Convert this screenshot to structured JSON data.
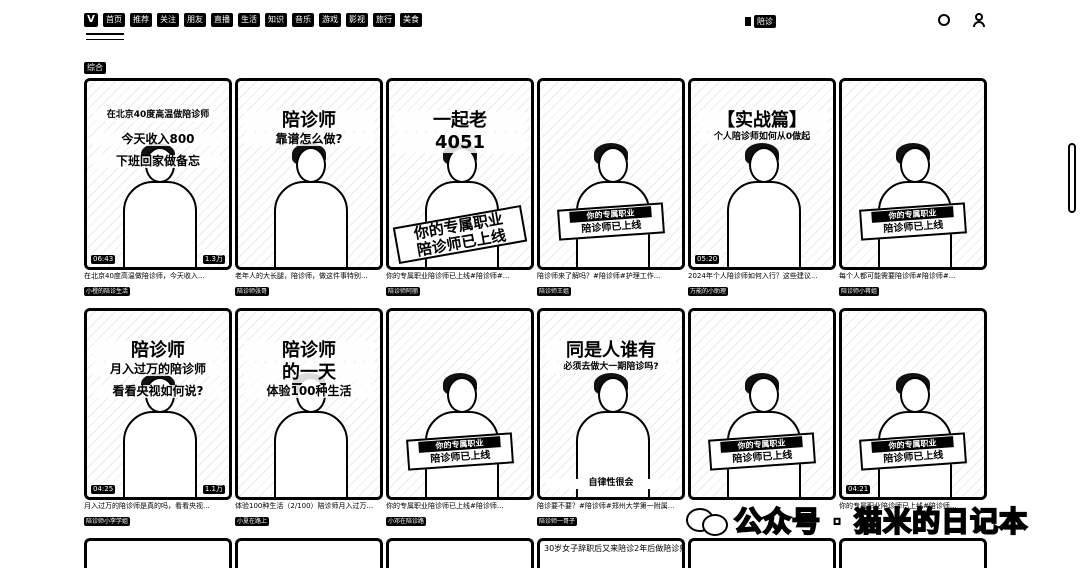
{
  "nav": {
    "logo": "V",
    "tabs": [
      "首页",
      "推荐",
      "关注",
      "朋友",
      "直播",
      "生活",
      "知识",
      "音乐",
      "游戏",
      "影视",
      "旅行",
      "美食"
    ]
  },
  "search": {
    "label": "陪诊"
  },
  "filter": {
    "label": "综合"
  },
  "row1": [
    {
      "overlay": [
        "在北京40度高温做陪诊师",
        "今天收入800",
        "下班回家做备忘"
      ],
      "duration": "06:43",
      "count": "1.3万",
      "title": "在北京40度高温做陪诊师，今天收入...",
      "author": "小橙的陪诊生活"
    },
    {
      "overlay": [
        "陪诊师",
        "靠谱怎么做?"
      ],
      "duration": "",
      "count": "",
      "title": "老年人的大长腿，陪诊师，做这件事特别...",
      "author": "陪诊师张哥"
    },
    {
      "overlay": [
        "一起老",
        "4051"
      ],
      "slanted": [
        "你的专属职业",
        "陪诊师已上线"
      ],
      "duration": "",
      "count": "",
      "title": "你的专属职业陪诊师已上线#陪诊师#...",
      "author": "陪诊师阿丽"
    },
    {
      "overlay": [],
      "banner": [
        "你的专属职业",
        "陪诊师已上线"
      ],
      "duration": "",
      "count": "",
      "title": "陪诊师来了解吗？#陪诊师#护理工作...",
      "author": "陪诊师王姐"
    },
    {
      "overlay": [
        "【实战篇】",
        "个人陪诊师如何从0做起"
      ],
      "duration": "05:20",
      "count": "",
      "title": "2024年个人陪诊师如何入行？这些建议...",
      "author": "万能的小助理"
    },
    {
      "overlay": [],
      "banner": [
        "你的专属职业",
        "陪诊师已上线"
      ],
      "duration": "",
      "count": "",
      "title": "每个人都可能需要陪诊师#陪诊师#...",
      "author": "陪诊师小蒋姐"
    }
  ],
  "row2": [
    {
      "overlay": [
        "陪诊师",
        "月入过万的陪诊师",
        "看看央视如何说?"
      ],
      "duration": "04:25",
      "count": "1.1万",
      "title": "月入过万的陪诊师是真的吗，看看央视...",
      "author": "陪诊师小李学姐"
    },
    {
      "overlay": [
        "陪诊师",
        "的一天",
        "体验100种生活"
      ],
      "duration": "",
      "count": "",
      "title": "体验100种生活（2/100）陪诊师月入过万...",
      "author": "小夏在路上"
    },
    {
      "overlay": [],
      "banner": [
        "你的专属职业",
        "陪诊师已上线"
      ],
      "duration": "",
      "count": "",
      "title": "你的专属职业陪诊师已上线#陪诊师...",
      "author": "小邓在陪诊路"
    },
    {
      "overlay": [
        "同是人谁有",
        "必须去做大一期陪诊吗?"
      ],
      "bottom_text": "自律性很会",
      "duration": "",
      "count": "",
      "title": "陪诊要不要？#陪诊师#郑州大学第一附属...",
      "author": "陪诊师一哥子"
    },
    {
      "overlay": [],
      "banner": [
        "你的专属职业",
        "陪诊师已上线"
      ],
      "duration": "",
      "count": "",
      "title": "",
      "author": ""
    },
    {
      "overlay": [],
      "banner": [
        "你的专属职业",
        "陪诊师已上线"
      ],
      "duration": "04:21",
      "count": "",
      "title": "你的专属职业陪诊师已上线#陪诊师...",
      "author": ""
    }
  ],
  "row3_titles": [
    "",
    "",
    "",
    "30岁女子辞职后又来陪诊2年后做陪诊师",
    "",
    ""
  ],
  "watermark": {
    "text": "公众号 · 猫米的日记本"
  }
}
